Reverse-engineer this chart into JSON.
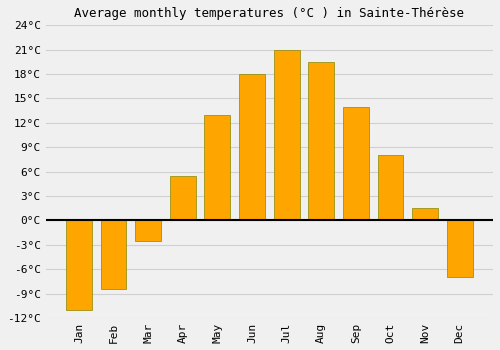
{
  "title": "Average monthly temperatures (°C ) in Sainte-Thérèse",
  "months": [
    "Jan",
    "Feb",
    "Mar",
    "Apr",
    "May",
    "Jun",
    "Jul",
    "Aug",
    "Sep",
    "Oct",
    "Nov",
    "Dec"
  ],
  "values": [
    -11,
    -8.5,
    -2.5,
    5.5,
    13,
    18,
    21,
    19.5,
    14,
    8,
    1.5,
    -7
  ],
  "bar_color": "#FFA500",
  "bar_edge_color": "#888800",
  "ylim": [
    -12,
    24
  ],
  "yticks": [
    -12,
    -9,
    -6,
    -3,
    0,
    3,
    6,
    9,
    12,
    15,
    18,
    21,
    24
  ],
  "ytick_labels": [
    "-12°C",
    "-9°C",
    "-6°C",
    "-3°C",
    "0°C",
    "3°C",
    "6°C",
    "9°C",
    "12°C",
    "15°C",
    "18°C",
    "21°C",
    "24°C"
  ],
  "background_color": "#f0f0f0",
  "grid_color": "#d0d0d0",
  "zero_line_color": "#000000",
  "title_fontsize": 9,
  "tick_fontsize": 8,
  "bar_width": 0.75,
  "xlabel_rotation": 90
}
